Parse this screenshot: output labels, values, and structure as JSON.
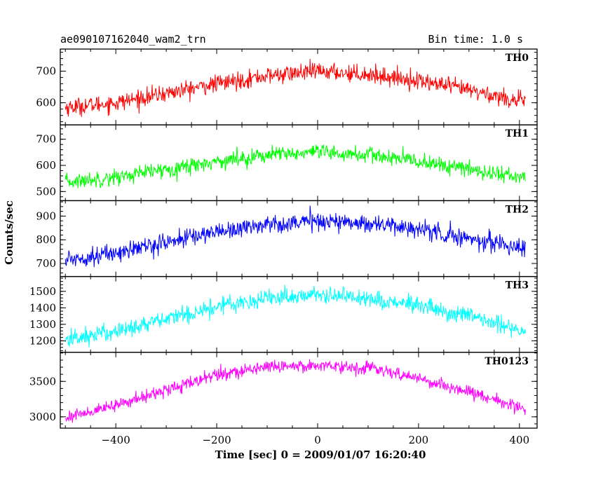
{
  "header": {
    "title": "ae090107162040_wam2_trn",
    "bin_time": "Bin time: 1.0 s"
  },
  "chart_data": {
    "type": "line",
    "xlabel": "Time [sec] 0 = 2009/01/07 16:20:40",
    "ylabel": "Counts/sec",
    "xlim": [
      -510,
      435
    ],
    "x_ticks": [
      -400,
      -200,
      0,
      200,
      400
    ],
    "panels": [
      {
        "name": "TH0",
        "color": "#ff0000",
        "ylim": [
          530,
          770
        ],
        "y_ticks": [
          600,
          700
        ],
        "x": [
          -500,
          -400,
          -300,
          -200,
          -100,
          0,
          100,
          200,
          300,
          400,
          410
        ],
        "values": [
          585,
          600,
          630,
          660,
          685,
          700,
          690,
          670,
          640,
          605,
          600
        ],
        "noise": 25
      },
      {
        "name": "TH1",
        "color": "#00ff00",
        "ylim": [
          465,
          755
        ],
        "y_ticks": [
          500,
          600,
          700
        ],
        "x": [
          -500,
          -400,
          -300,
          -200,
          -100,
          0,
          100,
          200,
          300,
          400,
          410
        ],
        "values": [
          535,
          555,
          585,
          615,
          640,
          648,
          640,
          615,
          585,
          555,
          550
        ],
        "noise": 28
      },
      {
        "name": "TH2",
        "color": "#0000ff",
        "ylim": [
          645,
          965
        ],
        "y_ticks": [
          700,
          800,
          900
        ],
        "x": [
          -500,
          -400,
          -300,
          -200,
          -100,
          0,
          100,
          200,
          300,
          400,
          410
        ],
        "values": [
          715,
          745,
          790,
          835,
          865,
          880,
          870,
          845,
          805,
          770,
          765
        ],
        "noise": 35
      },
      {
        "name": "TH3",
        "color": "#00ffff",
        "ylim": [
          1130,
          1590
        ],
        "y_ticks": [
          1200,
          1300,
          1400,
          1500
        ],
        "x": [
          -500,
          -400,
          -300,
          -200,
          -100,
          0,
          100,
          200,
          300,
          400,
          410
        ],
        "values": [
          1205,
          1260,
          1330,
          1410,
          1460,
          1480,
          1460,
          1410,
          1345,
          1270,
          1260
        ],
        "noise": 50
      },
      {
        "name": "TH0123",
        "color": "#ff00ff",
        "ylim": [
          2840,
          3910
        ],
        "y_ticks": [
          3000,
          3500
        ],
        "x": [
          -500,
          -400,
          -300,
          -200,
          -100,
          0,
          100,
          200,
          300,
          400,
          410
        ],
        "values": [
          2990,
          3160,
          3380,
          3590,
          3710,
          3730,
          3690,
          3540,
          3350,
          3140,
          3100
        ],
        "noise": 80
      }
    ]
  }
}
